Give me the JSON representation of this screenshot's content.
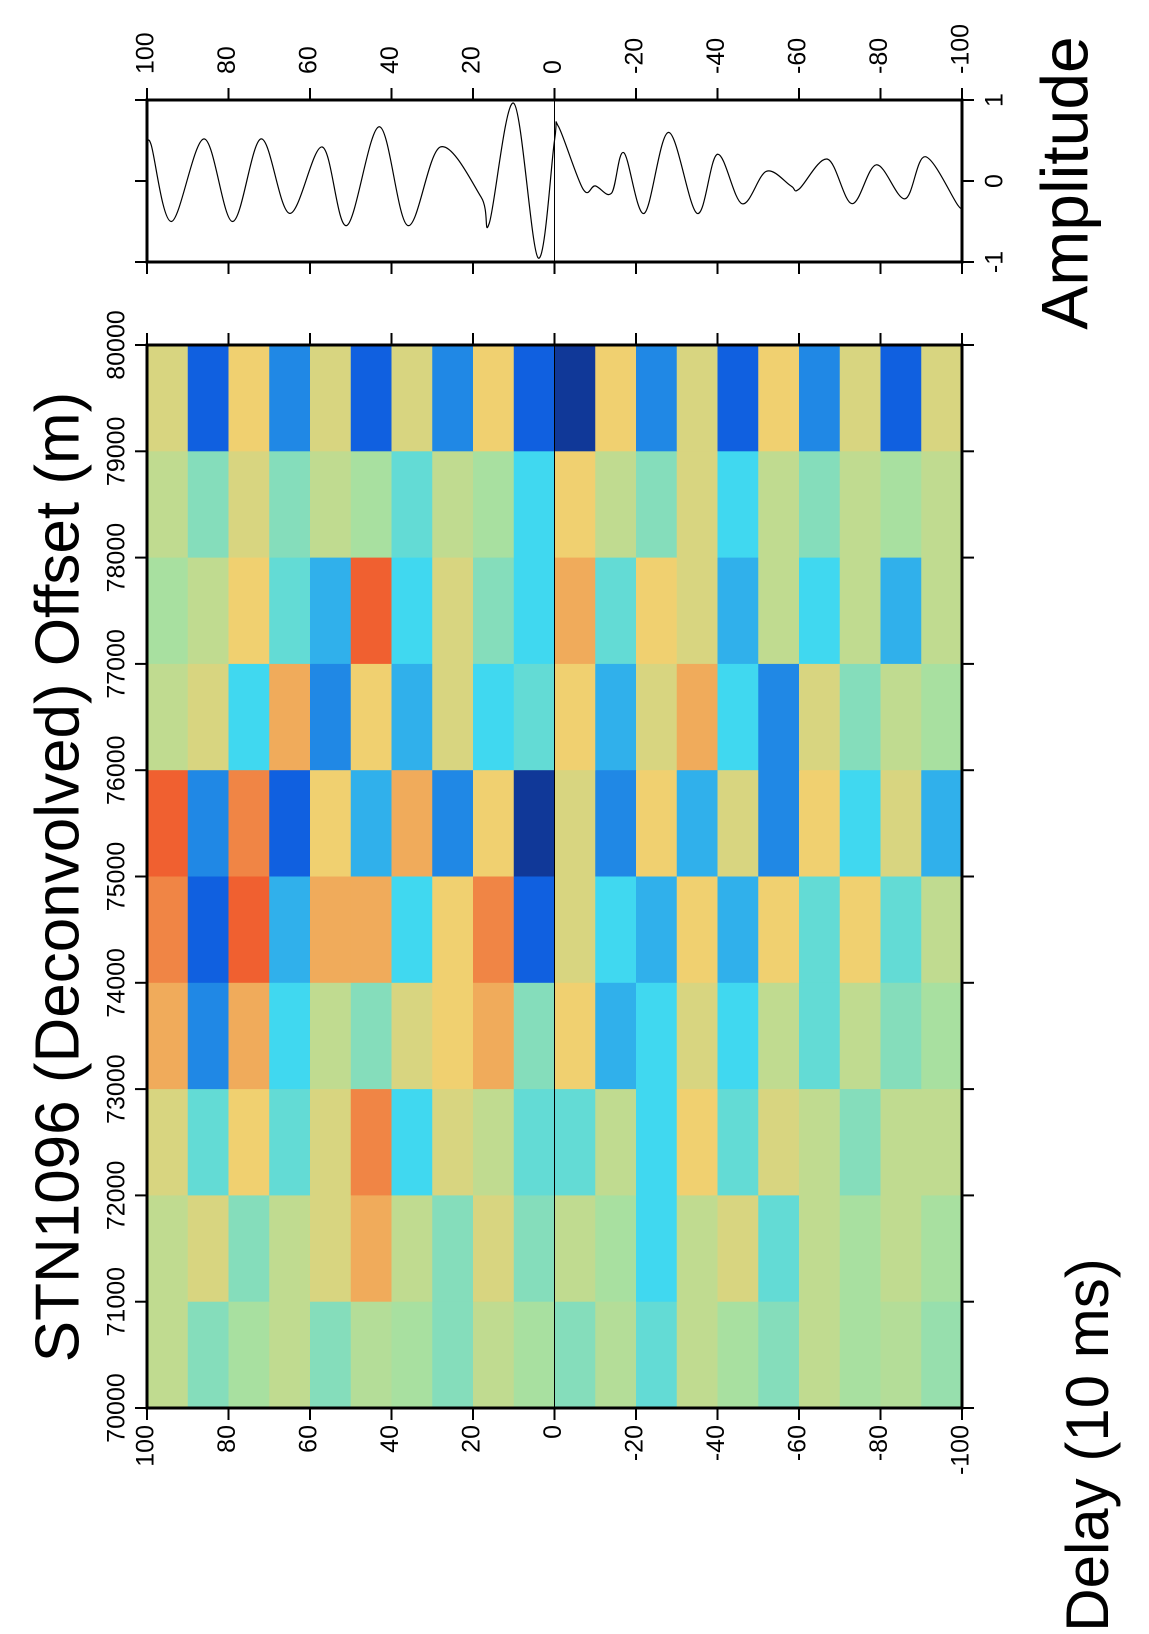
{
  "chart_data": [
    {
      "type": "heatmap",
      "title": "STN1096 (Deconvolved) Offset (m)",
      "ylabel": "Delay (10 ms)",
      "x_bins": [
        70000,
        71000,
        72000,
        73000,
        74000,
        75000,
        76000,
        77000,
        78000,
        79000,
        80000
      ],
      "y_bins": [
        100,
        90,
        80,
        70,
        60,
        50,
        40,
        30,
        20,
        10,
        0,
        -10,
        -20,
        -30,
        -40,
        -50,
        -60,
        -70,
        -80,
        -90,
        -100
      ],
      "z": [
        [
          0.1,
          -0.1,
          0,
          0.1,
          -0.1,
          0.05,
          0,
          -0.1,
          0.1,
          0,
          -0.1,
          0.05,
          -0.2,
          0.1,
          0,
          -0.1,
          0.1,
          0,
          0.05,
          -0.05
        ],
        [
          0.1,
          0.2,
          -0.1,
          0.1,
          0.2,
          0.4,
          0.1,
          -0.1,
          0.2,
          -0.1,
          0.1,
          0,
          -0.3,
          0.1,
          0.2,
          -0.2,
          0.1,
          0,
          0.1,
          0
        ],
        [
          0.2,
          -0.2,
          0.3,
          -0.2,
          0.2,
          0.5,
          -0.3,
          0.2,
          0.1,
          -0.2,
          -0.2,
          0.1,
          -0.3,
          0.3,
          -0.2,
          0.2,
          0.1,
          -0.1,
          0.1,
          0.1
        ],
        [
          0.4,
          -0.5,
          0.4,
          -0.3,
          0.1,
          -0.1,
          0.2,
          0.3,
          0.4,
          -0.1,
          0.3,
          -0.4,
          -0.3,
          0.2,
          -0.3,
          0.1,
          -0.2,
          0.1,
          -0.1,
          0
        ],
        [
          0.5,
          -0.6,
          0.6,
          -0.4,
          0.4,
          0.4,
          -0.3,
          0.3,
          0.5,
          -0.6,
          0.2,
          -0.3,
          -0.4,
          0.3,
          -0.4,
          0.3,
          -0.2,
          0.3,
          -0.2,
          0.1
        ],
        [
          0.6,
          -0.5,
          0.5,
          -0.6,
          0.3,
          -0.4,
          0.4,
          -0.5,
          0.3,
          -0.8,
          0.2,
          -0.5,
          0.3,
          -0.4,
          0.2,
          -0.5,
          0.3,
          -0.3,
          0.2,
          -0.4
        ],
        [
          0.1,
          0.2,
          -0.3,
          0.4,
          -0.5,
          0.3,
          -0.4,
          0.2,
          -0.3,
          -0.2,
          0.3,
          -0.4,
          0.2,
          0.4,
          -0.3,
          -0.5,
          0.2,
          -0.1,
          0.1,
          0
        ],
        [
          0,
          0.1,
          0.3,
          -0.2,
          -0.4,
          0.6,
          -0.3,
          0.2,
          -0.1,
          -0.3,
          0.4,
          -0.2,
          0.3,
          0.2,
          -0.4,
          0.1,
          -0.3,
          0.1,
          -0.4,
          0.1
        ],
        [
          0.1,
          -0.1,
          0.2,
          -0.1,
          0.1,
          0,
          -0.2,
          0.1,
          0,
          -0.3,
          0.3,
          0.1,
          -0.1,
          0.2,
          -0.3,
          0.1,
          -0.1,
          0.1,
          0,
          0.1
        ],
        [
          0.2,
          -0.6,
          0.3,
          -0.5,
          0.2,
          -0.6,
          0.2,
          -0.5,
          0.3,
          -0.6,
          -0.8,
          0.3,
          -0.5,
          0.2,
          -0.6,
          0.3,
          -0.5,
          0.2,
          -0.6,
          0.2
        ]
      ],
      "colorscale": [
        {
          "value": -1,
          "color": "#101050"
        },
        {
          "value": -0.6,
          "color": "#1060e0"
        },
        {
          "value": -0.3,
          "color": "#40d8f0"
        },
        {
          "value": 0,
          "color": "#a8e0a0"
        },
        {
          "value": 0.3,
          "color": "#f0d070"
        },
        {
          "value": 0.6,
          "color": "#f06030"
        },
        {
          "value": 1,
          "color": "#401010"
        }
      ],
      "xlim": [
        70000,
        80000
      ],
      "xticks": [
        70000,
        71000,
        72000,
        73000,
        74000,
        75000,
        76000,
        77000,
        78000,
        79000,
        80000
      ],
      "ylim": [
        -100,
        100
      ],
      "yticks": [
        100,
        80,
        60,
        40,
        20,
        0,
        -20,
        -40,
        -60,
        -80,
        -100
      ]
    },
    {
      "type": "line",
      "ylabel": "Amplitude",
      "color": "#000000",
      "x": [
        100,
        99,
        94,
        86,
        79,
        72,
        65,
        57,
        51,
        43,
        36,
        28,
        18,
        16,
        10,
        4,
        0,
        -1,
        -7,
        -10,
        -14,
        -17,
        -22,
        -28,
        -35,
        -40,
        -46,
        -52,
        -58,
        -60,
        -67,
        -73,
        -79,
        -86,
        -91,
        -99,
        -100
      ],
      "values": [
        0.4,
        0.45,
        -0.5,
        0.52,
        -0.5,
        0.52,
        -0.4,
        0.42,
        -0.55,
        0.67,
        -0.55,
        0.42,
        -0.2,
        -0.52,
        0.96,
        -0.95,
        0.5,
        0.67,
        -0.1,
        -0.06,
        -0.15,
        0.35,
        -0.4,
        0.6,
        -0.4,
        0.33,
        -0.28,
        0.12,
        -0.06,
        -0.1,
        0.27,
        -0.28,
        0.2,
        -0.22,
        0.3,
        -0.3,
        -0.3
      ],
      "xlim": [
        -100,
        100
      ],
      "xticks": [
        100,
        80,
        60,
        40,
        20,
        0,
        -20,
        -40,
        -60,
        -80,
        -100
      ],
      "ylim": [
        -1,
        1
      ],
      "yticks": [
        -1,
        0,
        1
      ]
    }
  ]
}
